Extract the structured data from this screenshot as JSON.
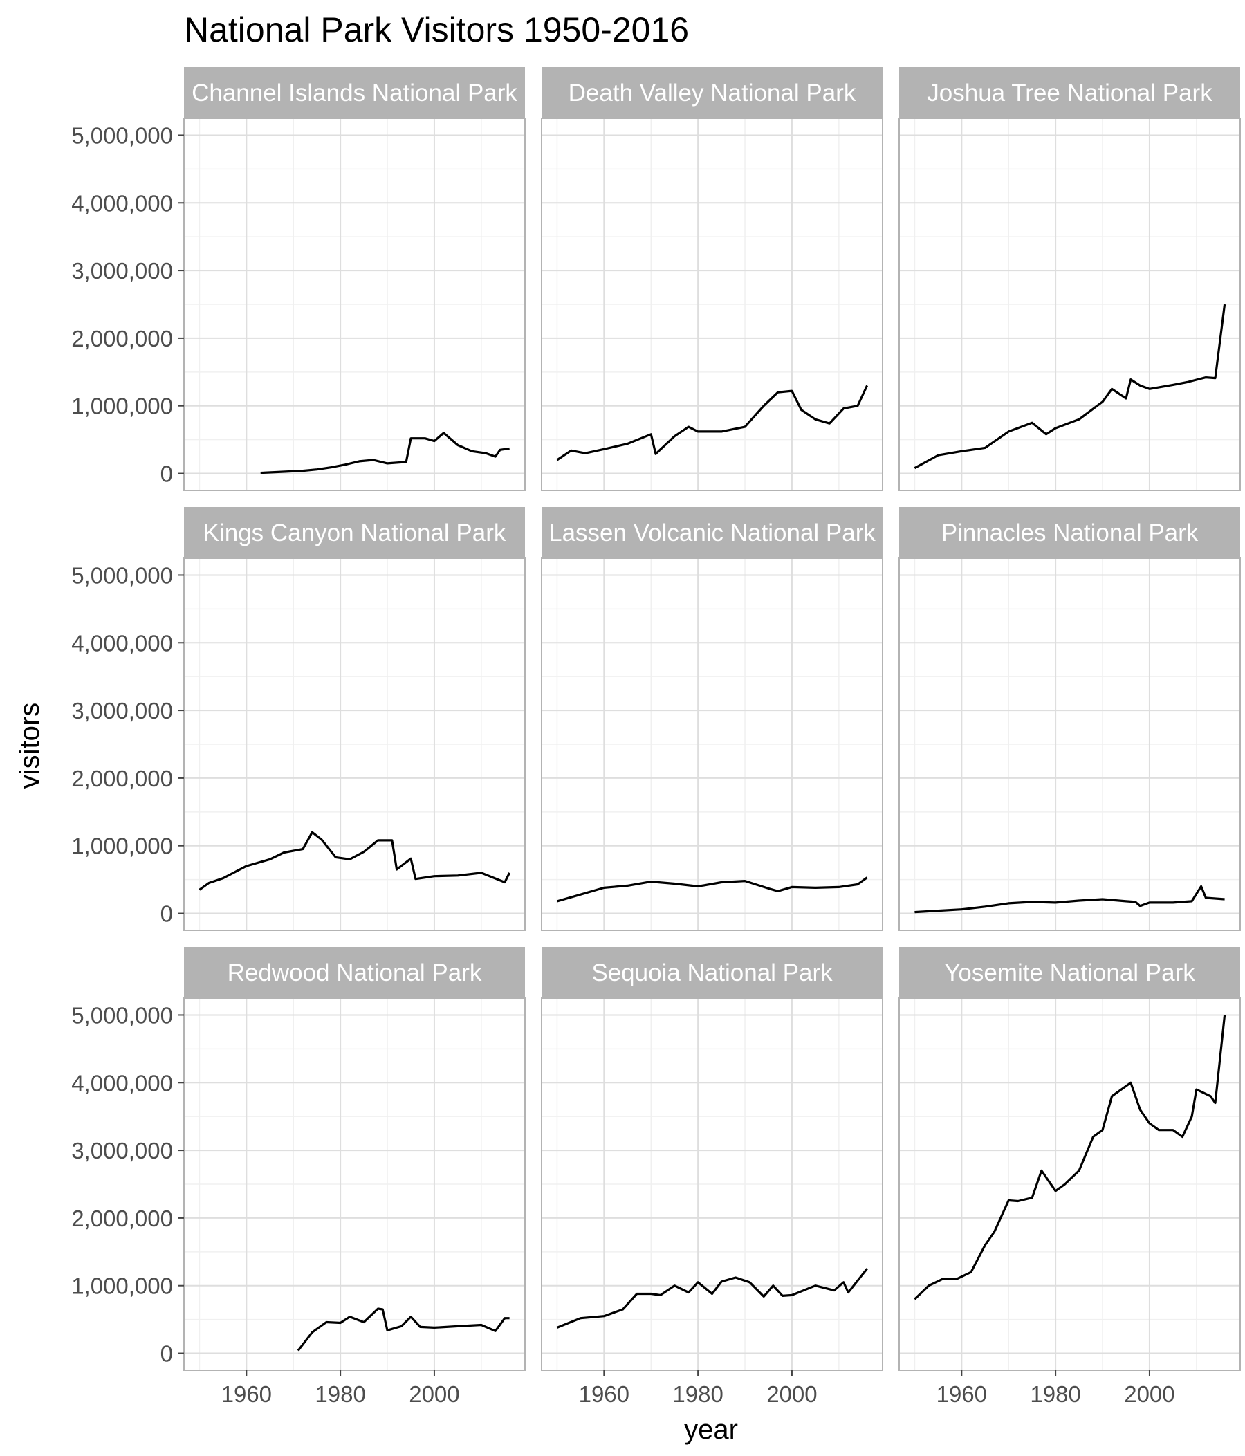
{
  "chart_data": {
    "type": "line",
    "title": "National Park Visitors 1950-2016",
    "xlabel": "year",
    "ylabel": "visitors",
    "facet_layout": "3x3 grid, shared axes",
    "xlim": [
      1950,
      2016
    ],
    "ylim": [
      0,
      5000000
    ],
    "x_ticks": [
      1960,
      1980,
      2000
    ],
    "y_ticks": [
      0,
      1000000,
      2000000,
      3000000,
      4000000,
      5000000
    ],
    "y_tick_labels": [
      "0",
      "1,000,000",
      "2,000,000",
      "3,000,000",
      "4,000,000",
      "5,000,000"
    ],
    "x_tick_labels": [
      "1960",
      "1980",
      "2000"
    ],
    "grid": true,
    "line_color": "#000000",
    "strip_color": "#b3b3b3",
    "facets": [
      {
        "name": "Channel Islands National Park",
        "x": [
          1963,
          1966,
          1969,
          1972,
          1975,
          1978,
          1981,
          1984,
          1987,
          1990,
          1994,
          1995,
          1998,
          2000,
          2002,
          2005,
          2008,
          2011,
          2013,
          2014,
          2016
        ],
        "y": [
          10000,
          20000,
          30000,
          40000,
          60000,
          90000,
          130000,
          180000,
          200000,
          150000,
          170000,
          520000,
          520000,
          480000,
          600000,
          420000,
          330000,
          300000,
          250000,
          350000,
          370000
        ]
      },
      {
        "name": "Death Valley National Park",
        "x": [
          1950,
          1953,
          1956,
          1960,
          1965,
          1970,
          1971,
          1975,
          1978,
          1980,
          1985,
          1990,
          1994,
          1997,
          2000,
          2002,
          2005,
          2008,
          2011,
          2014,
          2016
        ],
        "y": [
          200000,
          340000,
          300000,
          360000,
          440000,
          580000,
          290000,
          550000,
          690000,
          620000,
          620000,
          690000,
          1000000,
          1200000,
          1220000,
          940000,
          800000,
          740000,
          960000,
          1000000,
          1300000
        ]
      },
      {
        "name": "Joshua Tree National Park",
        "x": [
          1950,
          1955,
          1960,
          1965,
          1970,
          1975,
          1978,
          1980,
          1985,
          1990,
          1992,
          1995,
          1996,
          1998,
          2000,
          2005,
          2008,
          2012,
          2014,
          2016
        ],
        "y": [
          80000,
          270000,
          330000,
          380000,
          620000,
          750000,
          580000,
          670000,
          800000,
          1060000,
          1250000,
          1110000,
          1390000,
          1300000,
          1250000,
          1310000,
          1350000,
          1420000,
          1410000,
          2500000
        ]
      },
      {
        "name": "Kings Canyon National Park",
        "x": [
          1950,
          1952,
          1955,
          1960,
          1965,
          1968,
          1972,
          1974,
          1976,
          1979,
          1982,
          1985,
          1988,
          1991,
          1992,
          1995,
          1996,
          2000,
          2005,
          2010,
          2015,
          2016
        ],
        "y": [
          350000,
          450000,
          520000,
          700000,
          800000,
          900000,
          950000,
          1200000,
          1090000,
          830000,
          800000,
          910000,
          1080000,
          1080000,
          650000,
          810000,
          510000,
          550000,
          560000,
          600000,
          460000,
          600000
        ]
      },
      {
        "name": "Lassen Volcanic National Park",
        "x": [
          1950,
          1955,
          1960,
          1965,
          1970,
          1975,
          1980,
          1985,
          1990,
          1995,
          1997,
          2000,
          2005,
          2010,
          2014,
          2016
        ],
        "y": [
          180000,
          280000,
          380000,
          410000,
          470000,
          440000,
          400000,
          460000,
          480000,
          370000,
          330000,
          390000,
          380000,
          390000,
          430000,
          530000
        ]
      },
      {
        "name": "Pinnacles National Park",
        "x": [
          1950,
          1955,
          1960,
          1965,
          1970,
          1975,
          1980,
          1985,
          1990,
          1995,
          1997,
          1998,
          2000,
          2005,
          2009,
          2011,
          2012,
          2016
        ],
        "y": [
          20000,
          40000,
          60000,
          100000,
          150000,
          170000,
          160000,
          190000,
          210000,
          180000,
          170000,
          110000,
          160000,
          160000,
          180000,
          400000,
          230000,
          210000
        ]
      },
      {
        "name": "Redwood National Park",
        "x": [
          1971,
          1974,
          1977,
          1980,
          1982,
          1985,
          1988,
          1989,
          1990,
          1993,
          1995,
          1997,
          2000,
          2005,
          2010,
          2013,
          2015,
          2016
        ],
        "y": [
          40000,
          310000,
          460000,
          450000,
          540000,
          460000,
          660000,
          650000,
          340000,
          400000,
          540000,
          390000,
          380000,
          400000,
          420000,
          330000,
          520000,
          520000
        ]
      },
      {
        "name": "Sequoia National Park",
        "x": [
          1950,
          1955,
          1960,
          1964,
          1967,
          1970,
          1972,
          1975,
          1978,
          1980,
          1983,
          1985,
          1988,
          1991,
          1994,
          1996,
          1998,
          2000,
          2005,
          2009,
          2011,
          2012,
          2016
        ],
        "y": [
          380000,
          520000,
          550000,
          650000,
          880000,
          880000,
          860000,
          1000000,
          900000,
          1050000,
          880000,
          1060000,
          1120000,
          1050000,
          840000,
          1000000,
          850000,
          860000,
          1000000,
          930000,
          1050000,
          900000,
          1250000
        ]
      },
      {
        "name": "Yosemite National Park",
        "x": [
          1950,
          1953,
          1956,
          1959,
          1962,
          1965,
          1967,
          1970,
          1972,
          1975,
          1977,
          1980,
          1982,
          1985,
          1988,
          1990,
          1992,
          1994,
          1996,
          1998,
          2000,
          2002,
          2005,
          2007,
          2009,
          2010,
          2013,
          2014,
          2016
        ],
        "y": [
          800000,
          1000000,
          1100000,
          1100000,
          1200000,
          1600000,
          1800000,
          2260000,
          2250000,
          2300000,
          2700000,
          2400000,
          2500000,
          2700000,
          3200000,
          3300000,
          3800000,
          3900000,
          4000000,
          3600000,
          3400000,
          3300000,
          3300000,
          3200000,
          3500000,
          3900000,
          3800000,
          3700000,
          5000000
        ]
      }
    ]
  }
}
